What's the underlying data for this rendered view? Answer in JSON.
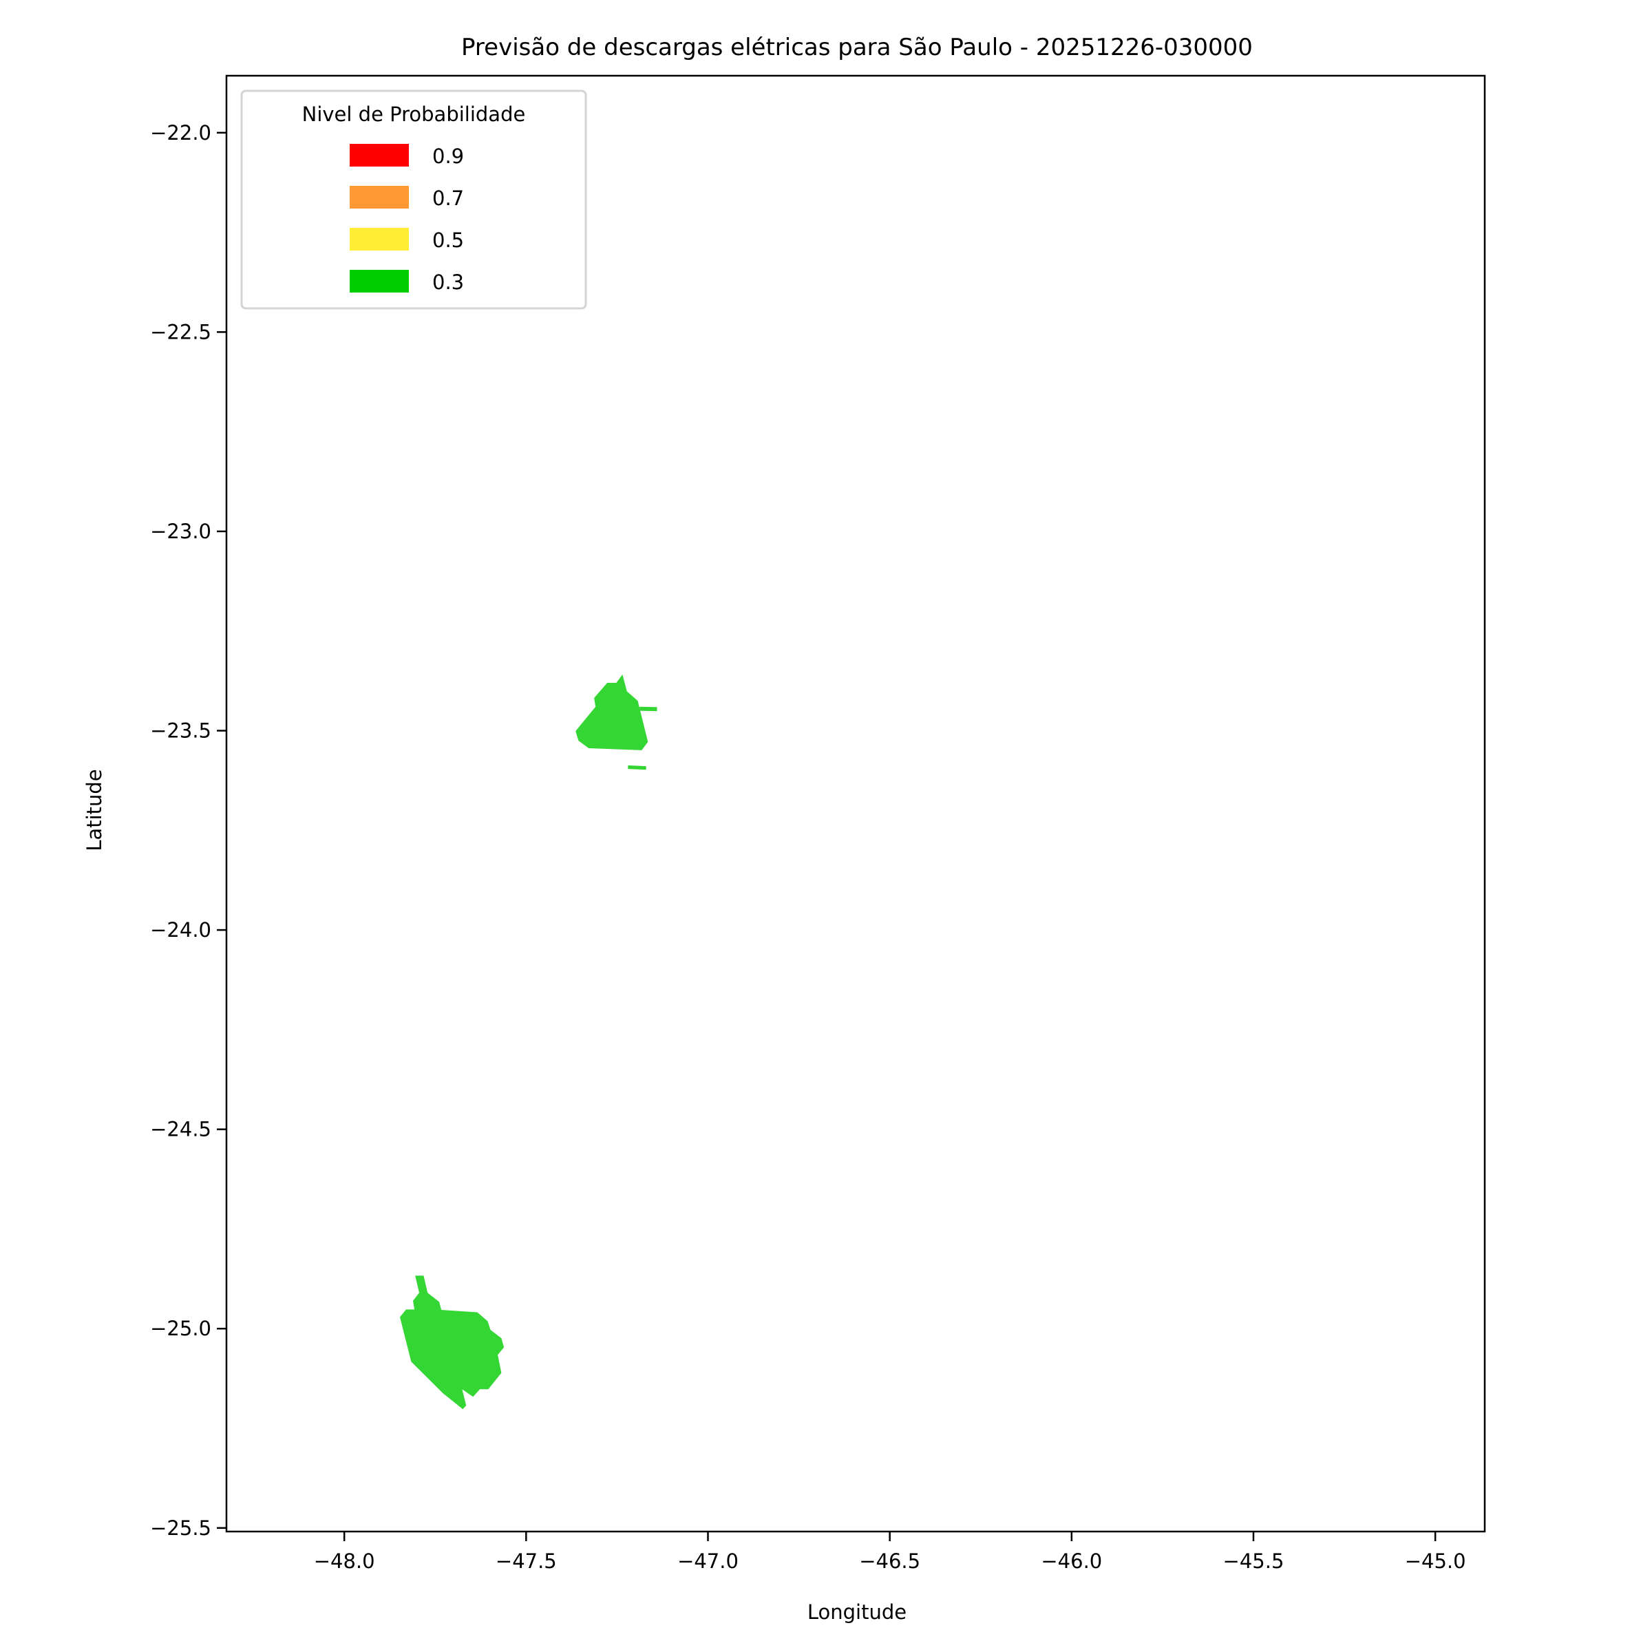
{
  "chart_data": {
    "type": "map",
    "title": "Previsão de descargas elétricas para São Paulo - 20251226-030000",
    "xlabel": "Longitude",
    "ylabel": "Latitude",
    "xlim": [
      -48.324,
      -44.864
    ],
    "ylim": [
      -25.509,
      -21.857
    ],
    "xticks": [
      -48.0,
      -47.5,
      -47.0,
      -46.5,
      -46.0,
      -45.5,
      -45.0
    ],
    "yticks": [
      -22.0,
      -22.5,
      -23.0,
      -23.5,
      -24.0,
      -24.5,
      -25.0,
      -25.5
    ],
    "grid": false,
    "legend": {
      "title": "Nivel de Probabilidade",
      "placement": "upper-left",
      "entries": [
        {
          "label": "0.9",
          "color": "#ff0000"
        },
        {
          "label": "0.7",
          "color": "#ff9933"
        },
        {
          "label": "0.5",
          "color": "#ffee33"
        },
        {
          "label": "0.3",
          "color": "#00cc00"
        }
      ]
    },
    "regions": [
      {
        "level": "0.3",
        "color": "#33d633",
        "coords": [
          [
            -47.235,
            -23.359
          ],
          [
            -47.223,
            -23.401
          ],
          [
            -47.193,
            -23.425
          ],
          [
            -47.165,
            -23.528
          ],
          [
            -47.182,
            -23.549
          ],
          [
            -47.328,
            -23.544
          ],
          [
            -47.356,
            -23.525
          ],
          [
            -47.364,
            -23.501
          ],
          [
            -47.309,
            -23.44
          ],
          [
            -47.313,
            -23.418
          ],
          [
            -47.277,
            -23.38
          ],
          [
            -47.252,
            -23.38
          ]
        ]
      },
      {
        "level": "0.3",
        "color": "#33d633",
        "coords": [
          [
            -47.188,
            -23.44
          ],
          [
            -47.14,
            -23.441
          ],
          [
            -47.14,
            -23.451
          ],
          [
            -47.188,
            -23.45
          ]
        ]
      },
      {
        "level": "0.3",
        "color": "#33d633",
        "coords": [
          [
            -47.22,
            -23.587
          ],
          [
            -47.17,
            -23.589
          ],
          [
            -47.17,
            -23.598
          ],
          [
            -47.22,
            -23.596
          ]
        ]
      },
      {
        "level": "0.3",
        "color": "#33d633",
        "coords": [
          [
            -47.805,
            -24.867
          ],
          [
            -47.782,
            -24.867
          ],
          [
            -47.771,
            -24.91
          ],
          [
            -47.739,
            -24.933
          ],
          [
            -47.733,
            -24.953
          ],
          [
            -47.634,
            -24.959
          ],
          [
            -47.606,
            -24.981
          ],
          [
            -47.598,
            -25.003
          ],
          [
            -47.568,
            -25.024
          ],
          [
            -47.561,
            -25.047
          ],
          [
            -47.578,
            -25.066
          ],
          [
            -47.568,
            -25.111
          ],
          [
            -47.604,
            -25.152
          ],
          [
            -47.627,
            -25.152
          ],
          [
            -47.646,
            -25.171
          ],
          [
            -47.676,
            -25.152
          ],
          [
            -47.665,
            -25.193
          ],
          [
            -47.674,
            -25.202
          ],
          [
            -47.729,
            -25.162
          ],
          [
            -47.816,
            -25.083
          ],
          [
            -47.847,
            -24.971
          ],
          [
            -47.83,
            -24.952
          ],
          [
            -47.807,
            -24.952
          ],
          [
            -47.811,
            -24.93
          ],
          [
            -47.794,
            -24.91
          ]
        ]
      }
    ]
  }
}
